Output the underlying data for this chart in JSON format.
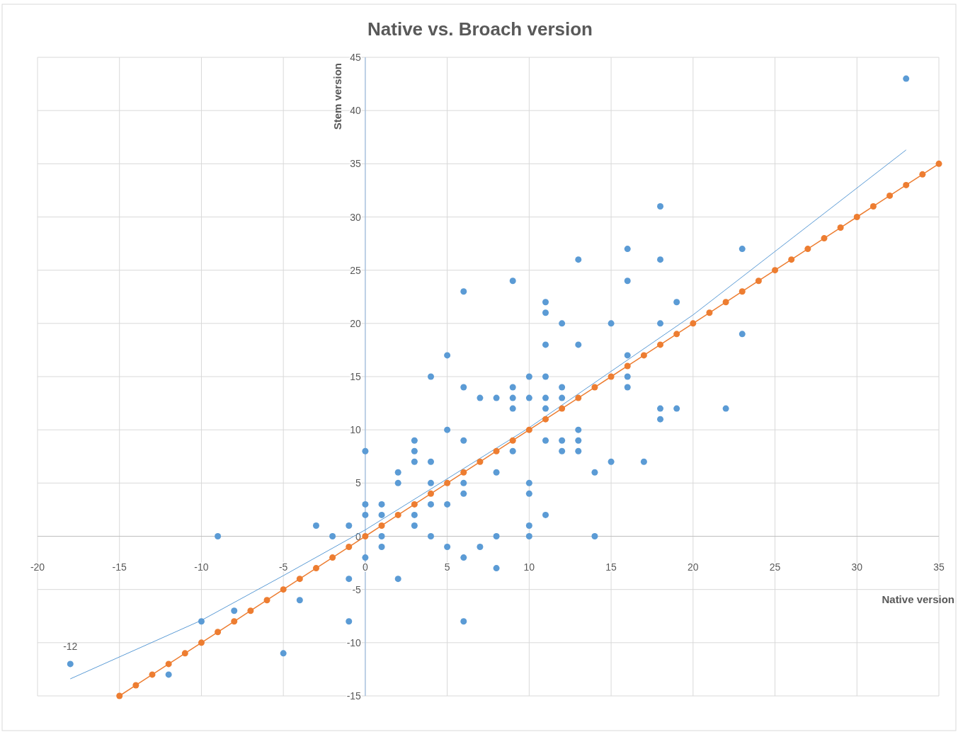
{
  "chart_data": {
    "type": "scatter",
    "title": "Native vs. Broach version",
    "xlabel": "Native version",
    "ylabel": "Stem version",
    "xlim": [
      -20,
      35
    ],
    "xticks": [
      -20,
      -15,
      -10,
      -5,
      0,
      5,
      10,
      15,
      20,
      25,
      30,
      35
    ],
    "ylim": [
      -15,
      45
    ],
    "yticks": [
      -15,
      -10,
      -5,
      0,
      5,
      10,
      15,
      20,
      25,
      30,
      35,
      40,
      45
    ],
    "grid": true,
    "annotations": [
      {
        "text": "-12",
        "x": -18,
        "y": -12
      }
    ],
    "series": [
      {
        "type": "scatter",
        "color": "#5b9bd5",
        "marker": "circle",
        "x": [
          -18,
          -12,
          -10,
          -9,
          -8,
          -5,
          -4,
          -3,
          -2,
          -1,
          -1,
          -1,
          0,
          0,
          0,
          0,
          1,
          1,
          1,
          1,
          2,
          2,
          2,
          3,
          3,
          3,
          3,
          3,
          4,
          4,
          4,
          4,
          4,
          5,
          5,
          5,
          5,
          6,
          6,
          6,
          6,
          6,
          6,
          6,
          7,
          7,
          8,
          8,
          8,
          8,
          9,
          9,
          9,
          9,
          9,
          10,
          10,
          10,
          10,
          10,
          10,
          11,
          11,
          11,
          11,
          11,
          11,
          11,
          11,
          12,
          12,
          12,
          12,
          12,
          13,
          13,
          13,
          13,
          13,
          14,
          14,
          15,
          15,
          16,
          16,
          16,
          16,
          16,
          17,
          18,
          18,
          18,
          18,
          18,
          19,
          19,
          22,
          23,
          23,
          33
        ],
        "values": [
          -12,
          -13,
          -8,
          0,
          -7,
          -11,
          -6,
          1,
          0,
          1,
          -4,
          -8,
          8,
          3,
          2,
          -2,
          3,
          2,
          0,
          -1,
          6,
          5,
          -4,
          9,
          8,
          7,
          2,
          1,
          15,
          7,
          5,
          3,
          0,
          17,
          10,
          3,
          -1,
          23,
          14,
          9,
          5,
          4,
          -2,
          -8,
          13,
          -1,
          13,
          6,
          0,
          -3,
          24,
          14,
          13,
          12,
          8,
          15,
          13,
          5,
          4,
          1,
          0,
          22,
          21,
          18,
          15,
          13,
          12,
          9,
          2,
          20,
          14,
          13,
          9,
          8,
          26,
          18,
          10,
          9,
          8,
          6,
          0,
          20,
          7,
          27,
          24,
          17,
          15,
          14,
          7,
          31,
          26,
          20,
          12,
          11,
          22,
          12,
          12,
          27,
          19,
          43
        ]
      },
      {
        "type": "line",
        "color": "#5b9bd5",
        "marker": "none",
        "x": [
          -18,
          -10,
          -5,
          0,
          10,
          20,
          33
        ],
        "values": [
          -13.4,
          -7.9,
          -3.7,
          0.6,
          10.2,
          20.8,
          36.3
        ]
      },
      {
        "type": "line",
        "color": "#ed7d31",
        "marker": "circle",
        "x": [
          -15,
          -14,
          -13,
          -12,
          -11,
          -10,
          -9,
          -8,
          -7,
          -6,
          -5,
          -4,
          -3,
          -2,
          -1,
          0,
          1,
          2,
          3,
          4,
          5,
          6,
          7,
          8,
          9,
          10,
          11,
          12,
          13,
          14,
          15,
          16,
          17,
          18,
          19,
          20,
          21,
          22,
          23,
          24,
          25,
          26,
          27,
          28,
          29,
          30,
          31,
          32,
          33,
          34,
          35
        ],
        "values": [
          -15,
          -14,
          -13,
          -12,
          -11,
          -10,
          -9,
          -8,
          -7,
          -6,
          -5,
          -4,
          -3,
          -2,
          -1,
          0,
          1,
          2,
          3,
          4,
          5,
          6,
          7,
          8,
          9,
          10,
          11,
          12,
          13,
          14,
          15,
          16,
          17,
          18,
          19,
          20,
          21,
          22,
          23,
          24,
          25,
          26,
          27,
          28,
          29,
          30,
          31,
          32,
          33,
          34,
          35
        ]
      }
    ]
  }
}
